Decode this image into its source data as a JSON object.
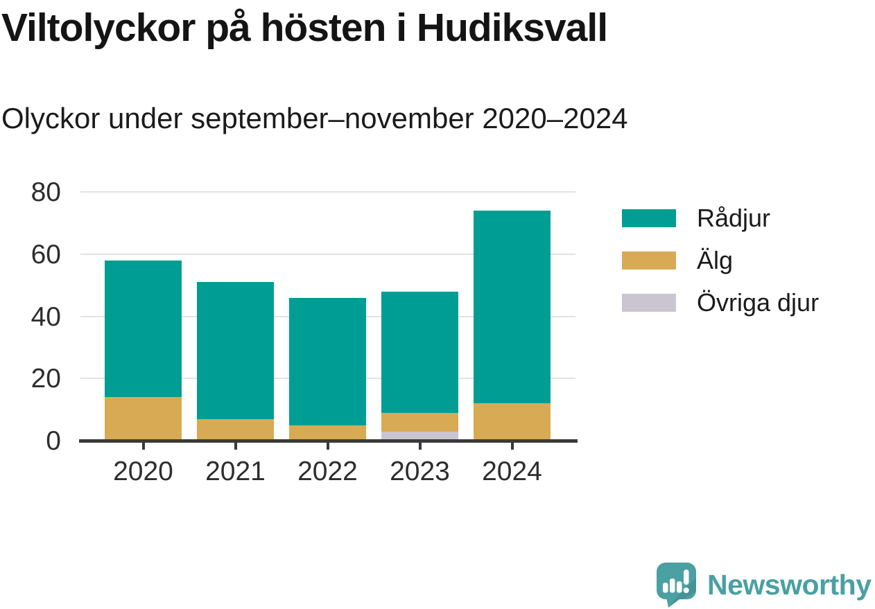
{
  "chart_data": {
    "type": "bar",
    "stacked": true,
    "title": "Viltolyckor på hösten i Hudiksvall",
    "subtitle": "Olyckor under september–november 2020–2024",
    "xlabel": "",
    "ylabel": "",
    "categories": [
      "2020",
      "2021",
      "2022",
      "2023",
      "2024"
    ],
    "series": [
      {
        "name": "Rådjur",
        "color": "#009d95",
        "values": [
          44,
          44,
          41,
          39,
          62
        ]
      },
      {
        "name": "Älg",
        "color": "#d9aa54",
        "values": [
          14,
          7,
          5,
          6,
          12
        ]
      },
      {
        "name": "Övriga djur",
        "color": "#c9c5d1",
        "values": [
          0,
          0,
          0,
          3,
          0
        ]
      }
    ],
    "totals": [
      58,
      51,
      46,
      48,
      74
    ],
    "stack_order_bottom_to_top": [
      "Övriga djur",
      "Älg",
      "Rådjur"
    ],
    "ylim": [
      0,
      80
    ],
    "yticks": [
      0,
      20,
      40,
      60,
      80
    ],
    "grid": "horizontal",
    "legend_position": "right",
    "axis_color": "#3a3a3a",
    "gridline_color": "#e3e3e3"
  },
  "branding": {
    "logo_text": "Newsworthy",
    "logo_color": "#4aa0a2",
    "logo_icon": "newsworthy-speech-bubble-bar-chart-icon"
  }
}
